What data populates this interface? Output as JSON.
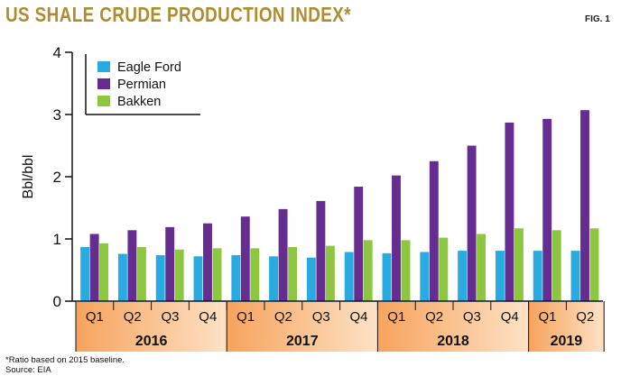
{
  "title": "US SHALE CRUDE PRODUCTION INDEX*",
  "fig_label": "FIG. 1",
  "footnote": "*Ratio based on 2015 baseline.",
  "source": "Source: EIA",
  "colors": {
    "eagle_ford": "#29abe2",
    "permian": "#662d91",
    "bakken": "#8dc63f",
    "title": "#b08c2f",
    "year_band_start": "#f7a35c",
    "year_band_end": "#fde2c6"
  },
  "chart_data": {
    "type": "bar",
    "title": "US SHALE CRUDE PRODUCTION INDEX*",
    "xlabel": "",
    "ylabel": "Bbl/bbl",
    "ylim": [
      0,
      4
    ],
    "yticks": [
      0,
      1,
      2,
      3,
      4
    ],
    "grid": false,
    "legend_position": "top-left",
    "categories": [
      "Q1",
      "Q2",
      "Q3",
      "Q4",
      "Q1",
      "Q2",
      "Q3",
      "Q4",
      "Q1",
      "Q2",
      "Q3",
      "Q4",
      "Q1",
      "Q2"
    ],
    "years": [
      {
        "label": "2016",
        "quarters": 4
      },
      {
        "label": "2017",
        "quarters": 4
      },
      {
        "label": "2018",
        "quarters": 4
      },
      {
        "label": "2019",
        "quarters": 2
      }
    ],
    "series": [
      {
        "name": "Eagle Ford",
        "color": "#29abe2",
        "values": [
          0.87,
          0.76,
          0.74,
          0.72,
          0.74,
          0.72,
          0.7,
          0.79,
          0.77,
          0.79,
          0.81,
          0.81,
          0.81,
          0.81
        ]
      },
      {
        "name": "Permian",
        "color": "#662d91",
        "values": [
          1.08,
          1.14,
          1.19,
          1.25,
          1.36,
          1.48,
          1.61,
          1.84,
          2.02,
          2.25,
          2.5,
          2.87,
          2.93,
          3.07
        ]
      },
      {
        "name": "Bakken",
        "color": "#8dc63f",
        "values": [
          0.93,
          0.87,
          0.83,
          0.85,
          0.85,
          0.87,
          0.89,
          0.98,
          0.98,
          1.02,
          1.08,
          1.17,
          1.14,
          1.17
        ]
      }
    ]
  }
}
